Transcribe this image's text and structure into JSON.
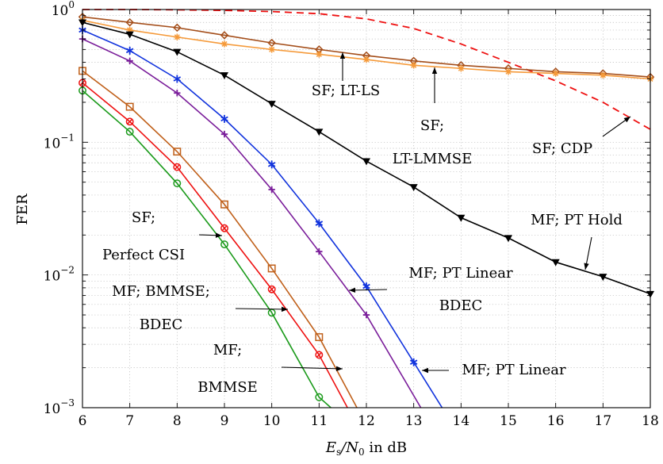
{
  "chart_data": {
    "type": "line",
    "xlabel": "E_s/N_0 in dB",
    "xlabel_parts": {
      "var": "E",
      "sub1": "s",
      "slash": "/N",
      "sub2": "0",
      "unit": " in dB"
    },
    "ylabel": "FER",
    "xlim": [
      6,
      18
    ],
    "ylim": [
      0.001,
      1
    ],
    "yscale": "log",
    "grid": true,
    "x_ticks": [
      "6",
      "7",
      "8",
      "9",
      "10",
      "11",
      "12",
      "13",
      "14",
      "15",
      "16",
      "17",
      "18"
    ],
    "y_ticks": [
      {
        "base": "10",
        "exp": "0"
      },
      {
        "base": "10",
        "exp": "−1"
      },
      {
        "base": "10",
        "exp": "−2"
      },
      {
        "base": "10",
        "exp": "−3"
      }
    ],
    "colors": {
      "black": "#000000",
      "red": "#ee1111",
      "blue": "#1133dd",
      "purple": "#7a1d9a",
      "brown": "#c0601a",
      "green": "#1a9a1a",
      "sienna": "#a44e1a",
      "orange": "#f59a3a",
      "dashed_red": "#ee1111"
    },
    "series": [
      {
        "key": "sf_cdp",
        "color": "#ee1111",
        "dash": true,
        "marker": "none",
        "x": [
          6,
          7,
          8,
          9,
          10,
          11,
          12,
          13,
          14,
          15,
          16,
          17,
          18
        ],
        "y": [
          1.0,
          1.0,
          0.995,
          0.985,
          0.965,
          0.93,
          0.85,
          0.72,
          0.55,
          0.4,
          0.29,
          0.2,
          0.125
        ]
      },
      {
        "key": "sf_lt_ls",
        "color": "#a44e1a",
        "dash": false,
        "marker": "diamond",
        "x": [
          6,
          7,
          8,
          9,
          10,
          11,
          12,
          13,
          14,
          15,
          16,
          17,
          18
        ],
        "y": [
          0.88,
          0.8,
          0.73,
          0.64,
          0.56,
          0.5,
          0.45,
          0.41,
          0.38,
          0.36,
          0.34,
          0.33,
          0.31
        ]
      },
      {
        "key": "sf_lt_lmmse",
        "color": "#f59a3a",
        "dash": false,
        "marker": "star",
        "x": [
          6,
          7,
          8,
          9,
          10,
          11,
          12,
          13,
          14,
          15,
          16,
          17,
          18
        ],
        "y": [
          0.83,
          0.7,
          0.62,
          0.55,
          0.5,
          0.46,
          0.42,
          0.38,
          0.36,
          0.34,
          0.33,
          0.32,
          0.3
        ]
      },
      {
        "key": "mf_pt_hold",
        "color": "#000000",
        "dash": false,
        "marker": "triangle-down",
        "x": [
          6,
          7,
          8,
          9,
          10,
          11,
          12,
          13,
          14,
          15,
          16,
          17,
          18
        ],
        "y": [
          0.8,
          0.65,
          0.48,
          0.32,
          0.195,
          0.12,
          0.072,
          0.046,
          0.027,
          0.019,
          0.0125,
          0.0097,
          0.0072
        ]
      },
      {
        "key": "mf_pt_linear",
        "color": "#1133dd",
        "dash": false,
        "marker": "asterisk",
        "x": [
          6,
          7,
          8,
          9,
          10,
          11,
          12,
          13,
          13.6
        ],
        "y": [
          0.7,
          0.49,
          0.3,
          0.15,
          0.068,
          0.0245,
          0.0082,
          0.0022,
          0.001
        ]
      },
      {
        "key": "mf_pt_linear_bdec",
        "color": "#7a1d9a",
        "dash": false,
        "marker": "plus",
        "x": [
          6,
          7,
          8,
          9,
          10,
          11,
          12,
          13.15
        ],
        "y": [
          0.6,
          0.41,
          0.235,
          0.115,
          0.044,
          0.015,
          0.005,
          0.001
        ]
      },
      {
        "key": "sf_perfect_csi",
        "color": "#c0601a",
        "dash": false,
        "marker": "square",
        "x": [
          6,
          7,
          8,
          9,
          10,
          11,
          11.8
        ],
        "y": [
          0.345,
          0.185,
          0.085,
          0.034,
          0.0112,
          0.0034,
          0.001
        ]
      },
      {
        "key": "mf_bmmse_bdec",
        "color": "#ee1111",
        "dash": false,
        "marker": "circle-dot",
        "x": [
          6,
          7,
          8,
          9,
          10,
          11,
          11.6
        ],
        "y": [
          0.28,
          0.143,
          0.065,
          0.0225,
          0.0078,
          0.0025,
          0.001
        ]
      },
      {
        "key": "mf_bmmse",
        "color": "#1a9a1a",
        "dash": false,
        "marker": "circle",
        "x": [
          6,
          7,
          8,
          9,
          10,
          11,
          11.25
        ],
        "y": [
          0.245,
          0.12,
          0.049,
          0.017,
          0.0052,
          0.0012,
          0.001
        ]
      }
    ],
    "annotations": [
      {
        "key": "ann_sf_lt_ls",
        "lines": [
          "SF; LT-LS"
        ]
      },
      {
        "key": "ann_sf_lt_lmmse",
        "lines": [
          "SF;",
          "LT-LMMSE"
        ]
      },
      {
        "key": "ann_sf_cdp",
        "lines": [
          "SF; CDP"
        ]
      },
      {
        "key": "ann_mf_pt_hold",
        "lines": [
          "MF; PT Hold"
        ]
      },
      {
        "key": "ann_mf_pt_linear_bdec",
        "lines": [
          "MF; PT Linear",
          "BDEC"
        ]
      },
      {
        "key": "ann_mf_pt_linear",
        "lines": [
          "MF; PT Linear"
        ]
      },
      {
        "key": "ann_sf_perfect_csi",
        "lines": [
          "SF;",
          "Perfect CSI"
        ]
      },
      {
        "key": "ann_mf_bmmse_bdec",
        "lines": [
          "MF; BMMSE;",
          "BDEC"
        ]
      },
      {
        "key": "ann_mf_bmmse",
        "lines": [
          "MF;",
          "BMMSE"
        ]
      }
    ]
  }
}
